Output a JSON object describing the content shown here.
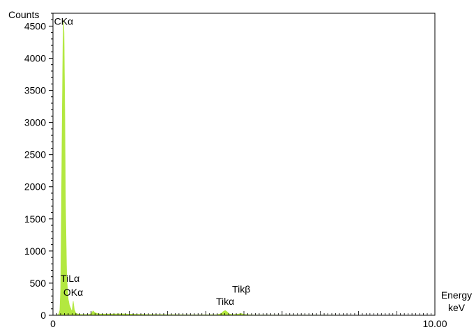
{
  "chart_data": {
    "type": "area",
    "ylabel": "Counts",
    "xlabel_line1": "Energy",
    "xlabel_line2": "keV",
    "xlim": [
      0,
      10
    ],
    "ylim": [
      0,
      4700
    ],
    "x_tick_labels": [
      {
        "value": 0,
        "label": "0"
      },
      {
        "value": 10,
        "label": "10.00"
      }
    ],
    "y_ticks": [
      0,
      500,
      1000,
      1500,
      2000,
      2500,
      3000,
      3500,
      4000,
      4500
    ],
    "y_tick_labels": [
      "0",
      "500",
      "1000",
      "1500",
      "2000",
      "2500",
      "3000",
      "3500",
      "4000",
      "4500"
    ],
    "fill_color": "#b3e840",
    "peak_labels": [
      {
        "label": "CKα",
        "x": 0.28,
        "y": 4500
      },
      {
        "label": "TiLα",
        "x": 0.45,
        "y": 500
      },
      {
        "label": "OKα",
        "x": 0.53,
        "y": 280
      },
      {
        "label": "Tikα",
        "x": 4.51,
        "y": 120
      },
      {
        "label": "Tikβ",
        "x": 4.93,
        "y": 330
      }
    ],
    "spectrum": [
      [
        0.0,
        0
      ],
      [
        0.1,
        5
      ],
      [
        0.15,
        15
      ],
      [
        0.18,
        80
      ],
      [
        0.2,
        400
      ],
      [
        0.22,
        1600
      ],
      [
        0.24,
        3000
      ],
      [
        0.26,
        4200
      ],
      [
        0.277,
        4600
      ],
      [
        0.29,
        4400
      ],
      [
        0.31,
        3200
      ],
      [
        0.33,
        1700
      ],
      [
        0.36,
        600
      ],
      [
        0.4,
        250
      ],
      [
        0.43,
        160
      ],
      [
        0.45,
        130
      ],
      [
        0.48,
        80
      ],
      [
        0.5,
        70
      ],
      [
        0.53,
        220
      ],
      [
        0.56,
        90
      ],
      [
        0.6,
        30
      ],
      [
        0.7,
        15
      ],
      [
        0.8,
        12
      ],
      [
        0.95,
        15
      ],
      [
        1.0,
        25
      ],
      [
        1.05,
        70
      ],
      [
        1.1,
        40
      ],
      [
        1.2,
        20
      ],
      [
        1.5,
        20
      ],
      [
        1.8,
        22
      ],
      [
        2.0,
        18
      ],
      [
        2.5,
        12
      ],
      [
        3.0,
        10
      ],
      [
        3.5,
        8
      ],
      [
        4.0,
        8
      ],
      [
        4.3,
        10
      ],
      [
        4.4,
        25
      ],
      [
        4.45,
        55
      ],
      [
        4.51,
        75
      ],
      [
        4.56,
        55
      ],
      [
        4.62,
        20
      ],
      [
        4.7,
        10
      ],
      [
        4.85,
        18
      ],
      [
        4.93,
        28
      ],
      [
        5.0,
        15
      ],
      [
        5.2,
        6
      ],
      [
        6.0,
        4
      ],
      [
        7.0,
        3
      ],
      [
        8.0,
        2
      ],
      [
        9.0,
        2
      ],
      [
        10.0,
        1
      ]
    ]
  }
}
